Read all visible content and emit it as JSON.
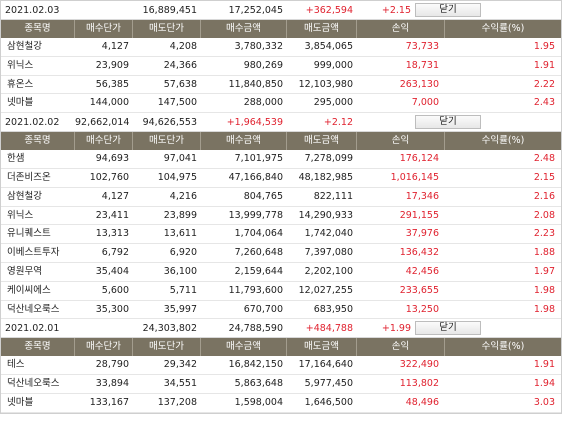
{
  "columns": [
    "종목명",
    "매수단가",
    "매도단가",
    "매수금액",
    "매도금액",
    "손익",
    "수익률(%)"
  ],
  "close_label": "닫기",
  "sections": [
    {
      "date": "2021.02.03",
      "buy_total": "16,889,451",
      "sell_total": "17,252,045",
      "profit": "+362,594",
      "rate": "+2.15",
      "rows": [
        {
          "name": "삼현철강",
          "buy_price": "4,127",
          "sell_price": "4,208",
          "buy_amount": "3,780,332",
          "sell_amount": "3,854,065",
          "profit": "73,733",
          "rate": "1.95"
        },
        {
          "name": "위닉스",
          "buy_price": "23,909",
          "sell_price": "24,366",
          "buy_amount": "980,269",
          "sell_amount": "999,000",
          "profit": "18,731",
          "rate": "1.91"
        },
        {
          "name": "휴온스",
          "buy_price": "56,385",
          "sell_price": "57,638",
          "buy_amount": "11,840,850",
          "sell_amount": "12,103,980",
          "profit": "263,130",
          "rate": "2.22"
        },
        {
          "name": "넷마블",
          "buy_price": "144,000",
          "sell_price": "147,500",
          "buy_amount": "288,000",
          "sell_amount": "295,000",
          "profit": "7,000",
          "rate": "2.43"
        }
      ]
    },
    {
      "date": "2021.02.02",
      "buy_total": "92,662,014",
      "sell_total": "94,626,553",
      "profit": "+1,964,539",
      "rate": "+2.12",
      "rows": [
        {
          "name": "한샘",
          "buy_price": "94,693",
          "sell_price": "97,041",
          "buy_amount": "7,101,975",
          "sell_amount": "7,278,099",
          "profit": "176,124",
          "rate": "2.48"
        },
        {
          "name": "더존비즈온",
          "buy_price": "102,760",
          "sell_price": "104,975",
          "buy_amount": "47,166,840",
          "sell_amount": "48,182,985",
          "profit": "1,016,145",
          "rate": "2.15"
        },
        {
          "name": "삼현철강",
          "buy_price": "4,127",
          "sell_price": "4,216",
          "buy_amount": "804,765",
          "sell_amount": "822,111",
          "profit": "17,346",
          "rate": "2.16"
        },
        {
          "name": "위닉스",
          "buy_price": "23,411",
          "sell_price": "23,899",
          "buy_amount": "13,999,778",
          "sell_amount": "14,290,933",
          "profit": "291,155",
          "rate": "2.08"
        },
        {
          "name": "유니퀘스트",
          "buy_price": "13,313",
          "sell_price": "13,611",
          "buy_amount": "1,704,064",
          "sell_amount": "1,742,040",
          "profit": "37,976",
          "rate": "2.23"
        },
        {
          "name": "이베스트투자",
          "buy_price": "6,792",
          "sell_price": "6,920",
          "buy_amount": "7,260,648",
          "sell_amount": "7,397,080",
          "profit": "136,432",
          "rate": "1.88"
        },
        {
          "name": "영원무역",
          "buy_price": "35,404",
          "sell_price": "36,100",
          "buy_amount": "2,159,644",
          "sell_amount": "2,202,100",
          "profit": "42,456",
          "rate": "1.97"
        },
        {
          "name": "케이씨에스",
          "buy_price": "5,600",
          "sell_price": "5,711",
          "buy_amount": "11,793,600",
          "sell_amount": "12,027,255",
          "profit": "233,655",
          "rate": "1.98"
        },
        {
          "name": "덕산네오룩스",
          "buy_price": "35,300",
          "sell_price": "35,997",
          "buy_amount": "670,700",
          "sell_amount": "683,950",
          "profit": "13,250",
          "rate": "1.98"
        }
      ]
    },
    {
      "date": "2021.02.01",
      "buy_total": "24,303,802",
      "sell_total": "24,788,590",
      "profit": "+484,788",
      "rate": "+1.99",
      "rows": [
        {
          "name": "테스",
          "buy_price": "28,790",
          "sell_price": "29,342",
          "buy_amount": "16,842,150",
          "sell_amount": "17,164,640",
          "profit": "322,490",
          "rate": "1.91"
        },
        {
          "name": "덕산네오룩스",
          "buy_price": "33,894",
          "sell_price": "34,551",
          "buy_amount": "5,863,648",
          "sell_amount": "5,977,450",
          "profit": "113,802",
          "rate": "1.94"
        },
        {
          "name": "넷마블",
          "buy_price": "133,167",
          "sell_price": "137,208",
          "buy_amount": "1,598,004",
          "sell_amount": "1,646,500",
          "profit": "48,496",
          "rate": "3.03"
        }
      ]
    }
  ]
}
